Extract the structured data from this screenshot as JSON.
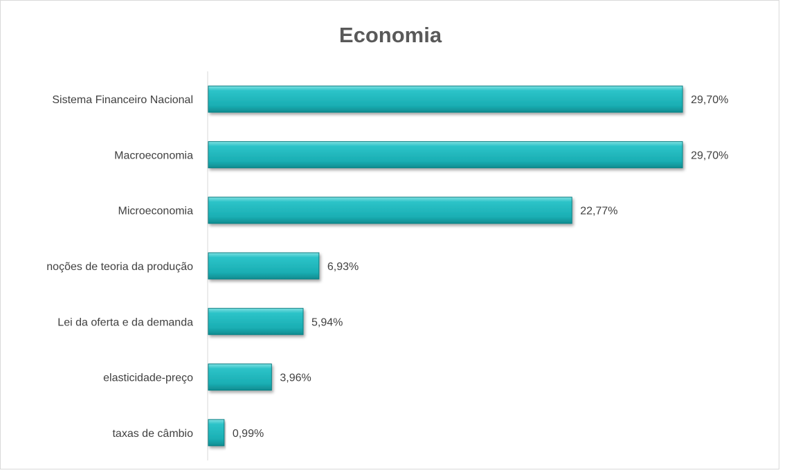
{
  "chart_data": {
    "type": "bar",
    "orientation": "horizontal",
    "title": "Economia",
    "categories": [
      "Sistema Financeiro Nacional",
      "Macroeconomia",
      "Microeconomia",
      "noções de teoria da produção",
      "Lei da oferta e da demanda",
      "elasticidade-preço",
      "taxas de câmbio"
    ],
    "values": [
      29.7,
      29.7,
      22.77,
      6.93,
      5.94,
      3.96,
      0.99
    ],
    "value_labels": [
      "29,70%",
      "29,70%",
      "22,77%",
      "6,93%",
      "5,94%",
      "3,96%",
      "0,99%"
    ],
    "xlim": [
      0,
      30
    ],
    "xlabel": "",
    "ylabel": "",
    "grid": false,
    "legend": "none",
    "bar_color": "#1fb8bd",
    "bar_edge_color": "#0e7f83"
  }
}
